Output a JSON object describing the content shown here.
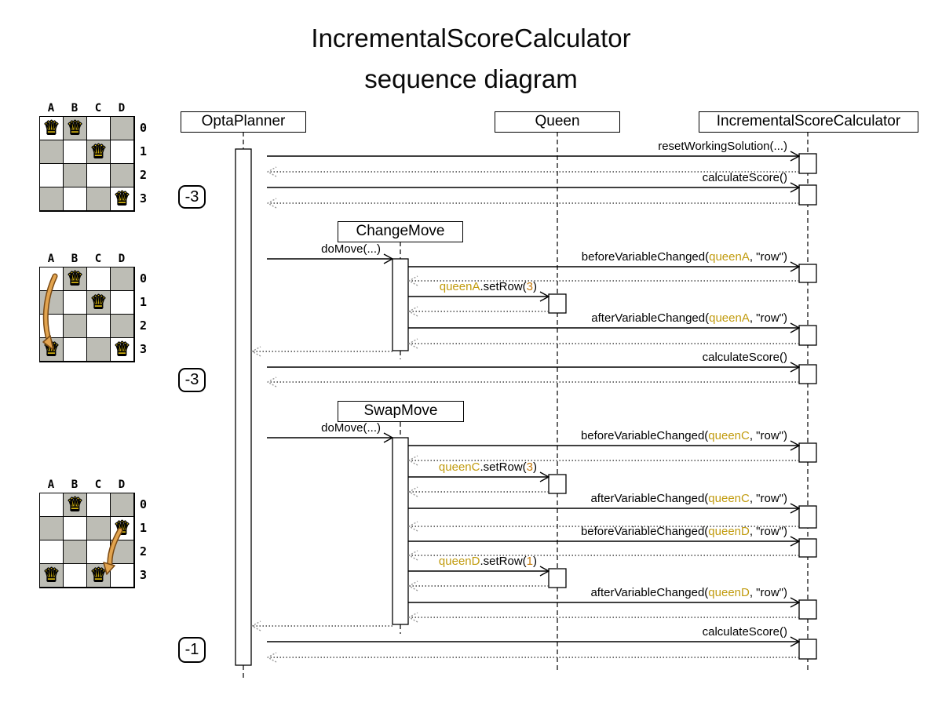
{
  "title": {
    "line1": "IncrementalScoreCalculator",
    "line2": "sequence diagram"
  },
  "participants": [
    {
      "id": "optaplanner",
      "label": "OptaPlanner"
    },
    {
      "id": "queen",
      "label": "Queen"
    },
    {
      "id": "calculator",
      "label": "IncrementalScoreCalculator"
    }
  ],
  "movers": [
    {
      "id": "changemove",
      "label": "ChangeMove"
    },
    {
      "id": "swapmove",
      "label": "SwapMove"
    }
  ],
  "scores": [
    {
      "label": "-3"
    },
    {
      "label": "-3"
    },
    {
      "label": "-1"
    }
  ],
  "messages": [
    {
      "from": "optaplanner",
      "to": "calculator",
      "parts": [
        {
          "t": "resetWorkingSolution(...)"
        }
      ]
    },
    {
      "from": "optaplanner",
      "to": "calculator",
      "parts": [
        {
          "t": "calculateScore()"
        }
      ]
    },
    {
      "from": "optaplanner",
      "to": "changemove",
      "parts": [
        {
          "t": "doMove(...)"
        }
      ]
    },
    {
      "from": "changemove",
      "to": "calculator",
      "parts": [
        {
          "t": "beforeVariableChanged("
        },
        {
          "t": "queenA",
          "c": "param"
        },
        {
          "t": ", \"row\")"
        }
      ]
    },
    {
      "from": "changemove",
      "to": "queen",
      "parts": [
        {
          "t": "queenA",
          "c": "param"
        },
        {
          "t": ".setRow("
        },
        {
          "t": "3",
          "c": "value"
        },
        {
          "t": ")"
        }
      ]
    },
    {
      "from": "changemove",
      "to": "calculator",
      "parts": [
        {
          "t": "afterVariableChanged("
        },
        {
          "t": "queenA",
          "c": "param"
        },
        {
          "t": ", \"row\")"
        }
      ]
    },
    {
      "from": "optaplanner",
      "to": "calculator",
      "parts": [
        {
          "t": "calculateScore()"
        }
      ]
    },
    {
      "from": "optaplanner",
      "to": "swapmove",
      "parts": [
        {
          "t": "doMove(...)"
        }
      ]
    },
    {
      "from": "swapmove",
      "to": "calculator",
      "parts": [
        {
          "t": "beforeVariableChanged("
        },
        {
          "t": "queenC",
          "c": "param"
        },
        {
          "t": ", \"row\")"
        }
      ]
    },
    {
      "from": "swapmove",
      "to": "queen",
      "parts": [
        {
          "t": "queenC",
          "c": "param"
        },
        {
          "t": ".setRow("
        },
        {
          "t": "3",
          "c": "value"
        },
        {
          "t": ")"
        }
      ]
    },
    {
      "from": "swapmove",
      "to": "calculator",
      "parts": [
        {
          "t": "afterVariableChanged("
        },
        {
          "t": "queenC",
          "c": "param"
        },
        {
          "t": ", \"row\")"
        }
      ]
    },
    {
      "from": "swapmove",
      "to": "calculator",
      "parts": [
        {
          "t": "beforeVariableChanged("
        },
        {
          "t": "queenD",
          "c": "param"
        },
        {
          "t": ", \"row\")"
        }
      ]
    },
    {
      "from": "swapmove",
      "to": "queen",
      "parts": [
        {
          "t": "queenD",
          "c": "param"
        },
        {
          "t": ".setRow("
        },
        {
          "t": "1",
          "c": "value"
        },
        {
          "t": ")"
        }
      ]
    },
    {
      "from": "swapmove",
      "to": "calculator",
      "parts": [
        {
          "t": "afterVariableChanged("
        },
        {
          "t": "queenD",
          "c": "param"
        },
        {
          "t": ", \"row\")"
        }
      ]
    },
    {
      "from": "optaplanner",
      "to": "calculator",
      "parts": [
        {
          "t": "calculateScore()"
        }
      ]
    }
  ],
  "boards": [
    {
      "columns": [
        "A",
        "B",
        "C",
        "D"
      ],
      "rows": [
        "0",
        "1",
        "2",
        "3"
      ],
      "queen_icon": "♛",
      "queens": [
        [
          0,
          0
        ],
        [
          1,
          0
        ],
        [
          2,
          1
        ],
        [
          3,
          3
        ]
      ]
    },
    {
      "columns": [
        "A",
        "B",
        "C",
        "D"
      ],
      "rows": [
        "0",
        "1",
        "2",
        "3"
      ],
      "queen_icon": "♛",
      "queens": [
        [
          1,
          0
        ],
        [
          2,
          1
        ],
        [
          0,
          3
        ],
        [
          3,
          3
        ]
      ]
    },
    {
      "columns": [
        "A",
        "B",
        "C",
        "D"
      ],
      "rows": [
        "0",
        "1",
        "2",
        "3"
      ],
      "queen_icon": "♛",
      "queens": [
        [
          1,
          0
        ],
        [
          3,
          1
        ],
        [
          0,
          3
        ],
        [
          2,
          3
        ]
      ]
    }
  ],
  "colors": {
    "param": "#c19b0e",
    "value": "#c4780a",
    "board_dark": "#bdbdb5",
    "queen_fill": "#f2cd13",
    "move_arrow_fill": "#e2a44f",
    "move_arrow_stroke": "#7a4a14",
    "return_arrow": "#999999"
  }
}
